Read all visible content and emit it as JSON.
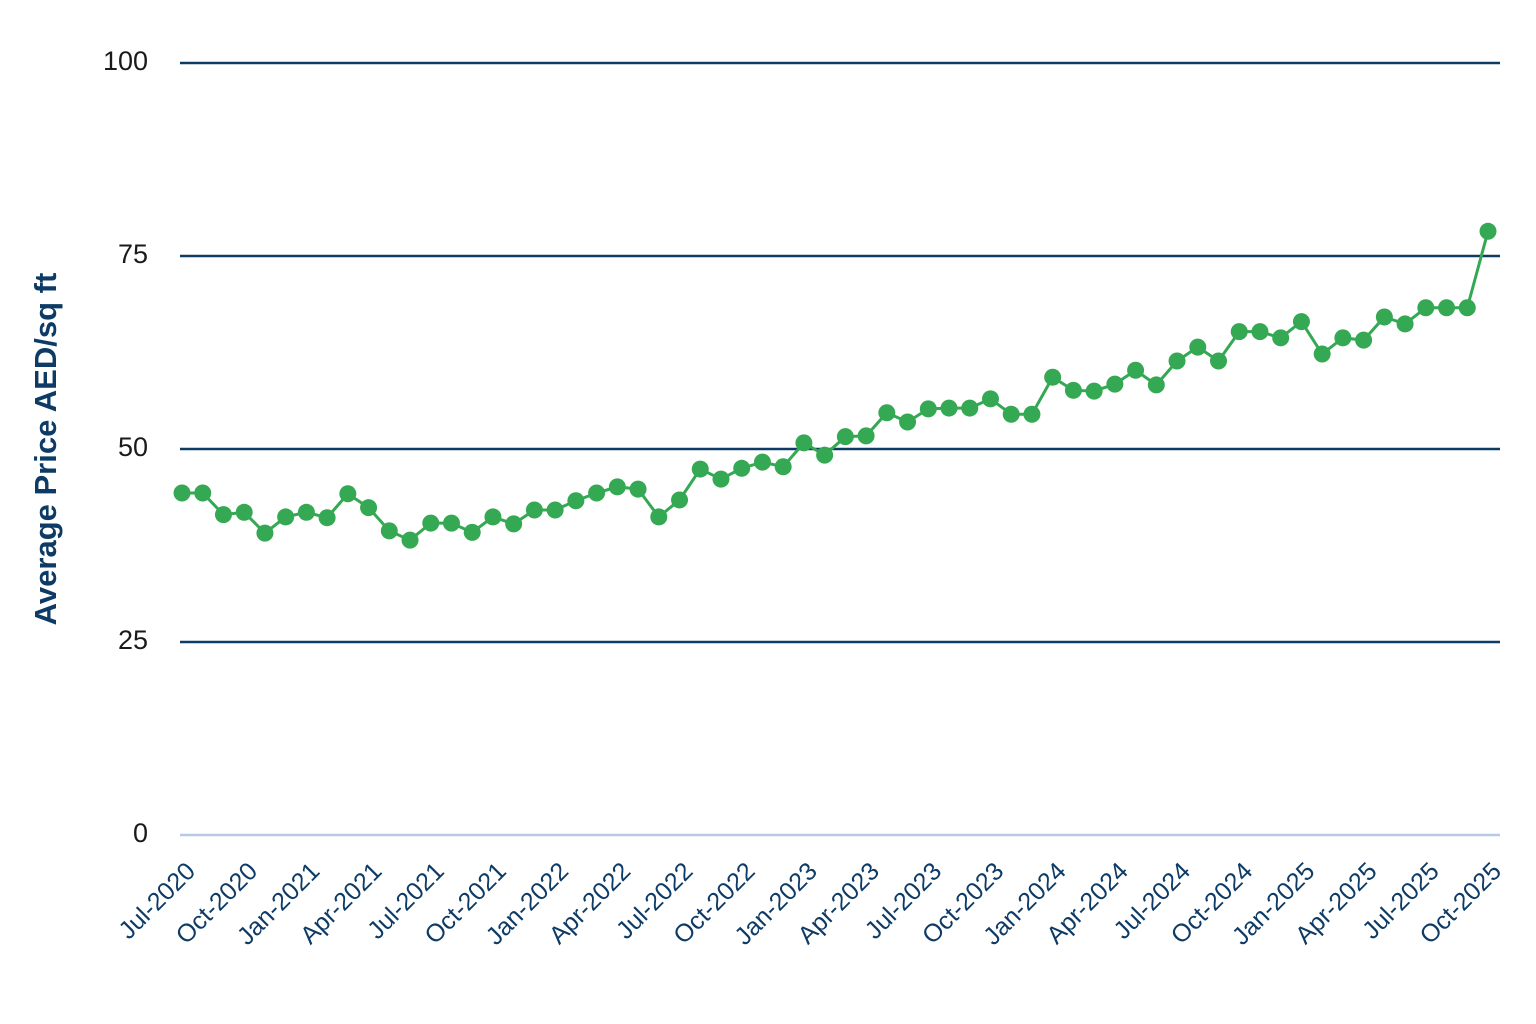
{
  "chart_data": {
    "type": "line",
    "y_label": "Average Price AED/sq ft",
    "categories": [
      "Jul-2020",
      null,
      null,
      "Oct-2020",
      null,
      null,
      "Jan-2021",
      null,
      null,
      "Apr-2021",
      null,
      null,
      "Jul-2021",
      null,
      null,
      "Oct-2021",
      null,
      null,
      "Jan-2022",
      null,
      null,
      "Apr-2022",
      null,
      null,
      "Jul-2022",
      null,
      null,
      "Oct-2022",
      null,
      null,
      "Jan-2023",
      null,
      null,
      "Apr-2023",
      null,
      null,
      "Jul-2023",
      null,
      null,
      "Oct-2023",
      null,
      null,
      "Jan-2024",
      null,
      null,
      "Apr-2024",
      null,
      null,
      "Jul-2024",
      null,
      null,
      "Oct-2024",
      null,
      null,
      "Jan-2025",
      null,
      null,
      "Apr-2025",
      null,
      null,
      "Jul-2025",
      null,
      null,
      "Oct-2025"
    ],
    "values": [
      44.3,
      44.3,
      41.5,
      41.8,
      39.1,
      41.2,
      41.8,
      41.1,
      44.2,
      42.4,
      39.4,
      38.2,
      40.4,
      40.4,
      39.2,
      41.2,
      40.3,
      42.1,
      42.1,
      43.3,
      44.3,
      45.1,
      44.8,
      41.2,
      43.4,
      47.4,
      46.1,
      47.5,
      48.3,
      47.7,
      50.8,
      49.2,
      51.6,
      51.7,
      54.7,
      53.5,
      55.2,
      55.3,
      55.3,
      56.5,
      54.5,
      54.5,
      59.3,
      57.6,
      57.5,
      58.4,
      60.2,
      58.3,
      61.4,
      63.2,
      61.4,
      65.2,
      65.2,
      64.4,
      66.5,
      62.3,
      64.4,
      64.1,
      67.1,
      66.2,
      68.3,
      68.3,
      68.3,
      78.2
    ],
    "color": "#34a853",
    "ylim": [
      0,
      100
    ],
    "yticks": [
      0,
      25,
      50,
      75,
      100
    ],
    "grid": true
  }
}
